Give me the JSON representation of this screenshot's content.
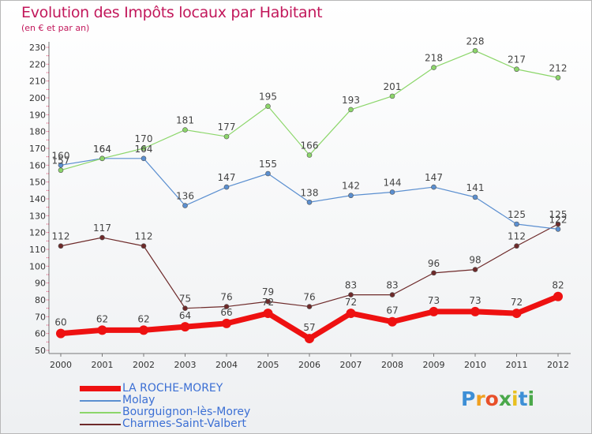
{
  "header": {
    "title": "Evolution des Impôts locaux par Habitant",
    "subtitle": "(en € et par an)"
  },
  "logo": {
    "text": "Proxiti"
  },
  "colors": {
    "LA ROCHE-MOREY": "#ee1111",
    "Molay": "#5b8fd0",
    "Bourguignon-lès-Morey": "#8cd66a",
    "Charmes-Saint-Valbert": "#6e2a2a",
    "title": "#c2185b"
  },
  "chart_data": {
    "type": "line",
    "title": "Evolution des Impôts locaux par Habitant",
    "subtitle": "(en € et par an)",
    "xlabel": "",
    "ylabel": "",
    "categories": [
      "2000",
      "2001",
      "2002",
      "2003",
      "2004",
      "2005",
      "2006",
      "2007",
      "2008",
      "2009",
      "2010",
      "2011",
      "2012"
    ],
    "ylim": [
      50,
      230
    ],
    "yticks": [
      50,
      60,
      70,
      80,
      90,
      100,
      110,
      120,
      130,
      140,
      150,
      160,
      170,
      180,
      190,
      200,
      210,
      220,
      230
    ],
    "grid": false,
    "legend_position": "bottom-left",
    "series": [
      {
        "name": "LA ROCHE-MOREY",
        "values": [
          60,
          62,
          62,
          64,
          66,
          72,
          57,
          72,
          67,
          73,
          73,
          72,
          82
        ],
        "labels": [
          "60",
          "62",
          "62",
          "64",
          "66",
          "72",
          "57",
          "72",
          "67",
          "73",
          "73",
          "72",
          "82"
        ]
      },
      {
        "name": "Molay",
        "values": [
          160,
          164,
          164,
          136,
          147,
          155,
          138,
          142,
          144,
          147,
          141,
          125,
          122
        ],
        "labels": [
          "160",
          "164",
          "164",
          "136",
          "147",
          "155",
          "138",
          "142",
          "144",
          "147",
          "141",
          "125",
          "122"
        ]
      },
      {
        "name": "Bourguignon-lès-Morey",
        "values": [
          157,
          164,
          170,
          181,
          177,
          195,
          166,
          193,
          201,
          218,
          228,
          217,
          212
        ],
        "labels": [
          "157",
          "164",
          "170",
          "181",
          "177",
          "195",
          "166",
          "193",
          "201",
          "218",
          "228",
          "217",
          "212"
        ]
      },
      {
        "name": "Charmes-Saint-Valbert",
        "values": [
          112,
          117,
          112,
          75,
          76,
          79,
          76,
          83,
          83,
          96,
          98,
          112,
          125
        ],
        "labels": [
          "112",
          "117",
          "112",
          "75",
          "76",
          "79",
          "76",
          "83",
          "83",
          "96",
          "98",
          "112",
          "125"
        ]
      }
    ]
  }
}
